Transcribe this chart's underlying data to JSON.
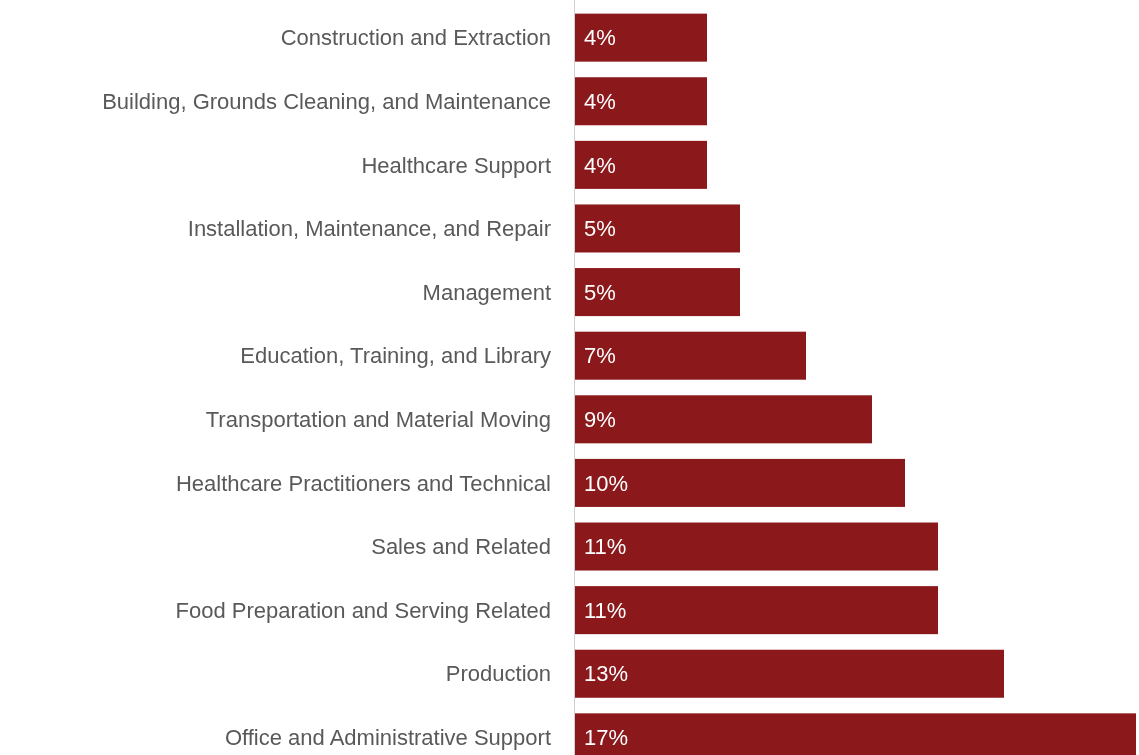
{
  "chart_data": {
    "type": "bar",
    "orientation": "horizontal",
    "categories": [
      "Construction and Extraction",
      "Building, Grounds Cleaning, and Maintenance",
      "Healthcare Support",
      "Installation, Maintenance, and Repair",
      "Management",
      "Education, Training, and Library",
      "Transportation and Material Moving",
      "Healthcare Practitioners and Technical",
      "Sales and Related",
      "Food Preparation and Serving Related",
      "Production",
      "Office and Administrative Support"
    ],
    "values": [
      4,
      4,
      4,
      5,
      5,
      7,
      9,
      10,
      11,
      11,
      13,
      17
    ],
    "value_labels": [
      "4%",
      "4%",
      "4%",
      "5%",
      "5%",
      "7%",
      "9%",
      "10%",
      "11%",
      "11%",
      "13%",
      "17%"
    ],
    "color": "#8b191c"
  }
}
